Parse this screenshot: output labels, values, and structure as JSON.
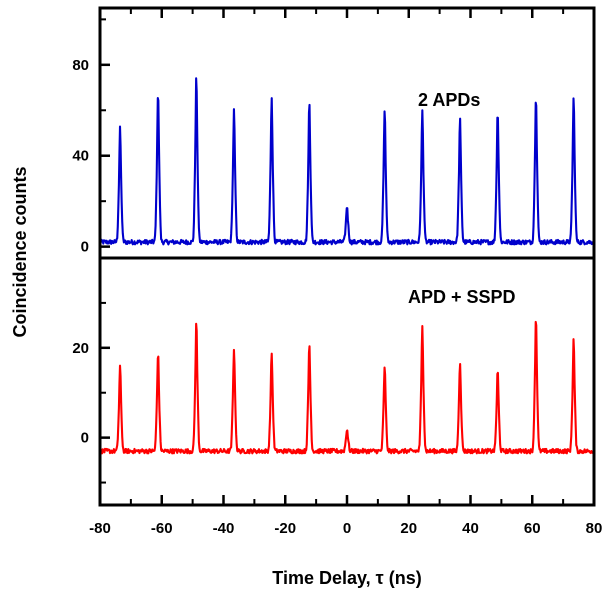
{
  "chart_data": [
    {
      "type": "line",
      "panel": "top",
      "annotation": "2 APDs",
      "color": "#0000cc",
      "xlim": [
        -80,
        80
      ],
      "ylim": [
        -5,
        105
      ],
      "yticks": [
        0,
        40,
        80
      ],
      "ytick_labels": [
        "0",
        "40",
        "80"
      ],
      "baseline": 2,
      "peaks": [
        {
          "x": -73.5,
          "y": 52
        },
        {
          "x": -61.2,
          "y": 69
        },
        {
          "x": -48.8,
          "y": 75
        },
        {
          "x": -36.6,
          "y": 60
        },
        {
          "x": -24.4,
          "y": 66
        },
        {
          "x": -12.2,
          "y": 64
        },
        {
          "x": 0,
          "y": 18
        },
        {
          "x": 12.2,
          "y": 61
        },
        {
          "x": 24.4,
          "y": 60
        },
        {
          "x": 36.6,
          "y": 56
        },
        {
          "x": 48.8,
          "y": 60
        },
        {
          "x": 61.2,
          "y": 67
        },
        {
          "x": 73.4,
          "y": 66
        }
      ]
    },
    {
      "type": "line",
      "panel": "bottom",
      "annotation": "APD + SSPD",
      "color": "#ff0000",
      "xlim": [
        -80,
        80
      ],
      "ylim": [
        -15,
        40
      ],
      "yticks": [
        0,
        20
      ],
      "ytick_labels": [
        "0",
        "20"
      ],
      "baseline": -3,
      "peaks": [
        {
          "x": -73.5,
          "y": 16
        },
        {
          "x": -61.2,
          "y": 19
        },
        {
          "x": -48.8,
          "y": 26
        },
        {
          "x": -36.6,
          "y": 20
        },
        {
          "x": -24.4,
          "y": 19
        },
        {
          "x": -12.2,
          "y": 21
        },
        {
          "x": 0,
          "y": 2
        },
        {
          "x": 12.2,
          "y": 16
        },
        {
          "x": 24.4,
          "y": 25
        },
        {
          "x": 36.6,
          "y": 17
        },
        {
          "x": 48.8,
          "y": 15
        },
        {
          "x": 61.2,
          "y": 27
        },
        {
          "x": 73.4,
          "y": 22
        }
      ]
    }
  ],
  "axes": {
    "xlabel": "Time Delay, τ (ns)",
    "ylabel": "Coincidence counts",
    "xticks": [
      -80,
      -60,
      -40,
      -20,
      0,
      20,
      40,
      60,
      80
    ],
    "xtick_labels": [
      "-80",
      "-60",
      "-40",
      "-20",
      "0",
      "20",
      "40",
      "60",
      "80"
    ]
  }
}
